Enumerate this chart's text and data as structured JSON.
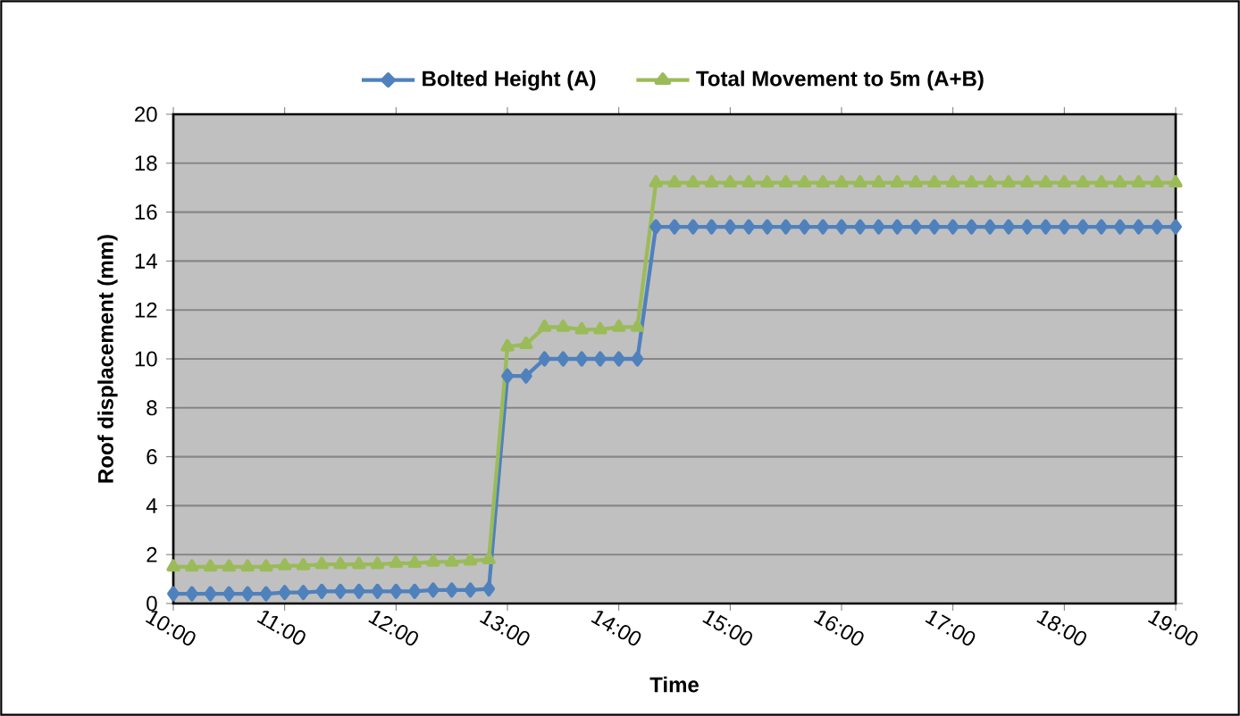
{
  "chart_data": {
    "type": "line",
    "xlabel": "Time",
    "ylabel": "Roof displacement (mm)",
    "x": [
      10,
      10.167,
      10.333,
      10.5,
      10.667,
      10.833,
      11,
      11.167,
      11.333,
      11.5,
      11.667,
      11.833,
      12,
      12.167,
      12.333,
      12.5,
      12.667,
      12.833,
      13,
      13.167,
      13.333,
      13.5,
      13.667,
      13.833,
      14,
      14.167,
      14.333,
      14.5,
      14.667,
      14.833,
      15,
      15.167,
      15.333,
      15.5,
      15.667,
      15.833,
      16,
      16.167,
      16.333,
      16.5,
      16.667,
      16.833,
      17,
      17.167,
      17.333,
      17.5,
      17.667,
      17.833,
      18,
      18.167,
      18.333,
      18.5,
      18.667,
      18.833,
      19
    ],
    "series": [
      {
        "name": "Bolted Height (A)",
        "color": "#4f81bd",
        "marker": "diamond",
        "values": [
          0.4,
          0.4,
          0.4,
          0.4,
          0.4,
          0.4,
          0.45,
          0.45,
          0.5,
          0.5,
          0.5,
          0.5,
          0.5,
          0.5,
          0.55,
          0.55,
          0.55,
          0.6,
          9.3,
          9.3,
          10.0,
          10.0,
          10.0,
          10.0,
          10.0,
          10.0,
          15.4,
          15.4,
          15.4,
          15.4,
          15.4,
          15.4,
          15.4,
          15.4,
          15.4,
          15.4,
          15.4,
          15.4,
          15.4,
          15.4,
          15.4,
          15.4,
          15.4,
          15.4,
          15.4,
          15.4,
          15.4,
          15.4,
          15.4,
          15.4,
          15.4,
          15.4,
          15.4,
          15.4,
          15.4
        ]
      },
      {
        "name": "Total Movement to 5m (A+B)",
        "color": "#9bbb59",
        "marker": "triangle",
        "values": [
          1.5,
          1.5,
          1.5,
          1.5,
          1.5,
          1.5,
          1.55,
          1.55,
          1.6,
          1.6,
          1.6,
          1.6,
          1.65,
          1.65,
          1.7,
          1.7,
          1.75,
          1.8,
          10.5,
          10.6,
          11.3,
          11.3,
          11.2,
          11.2,
          11.3,
          11.3,
          17.2,
          17.2,
          17.2,
          17.2,
          17.2,
          17.2,
          17.2,
          17.2,
          17.2,
          17.2,
          17.2,
          17.2,
          17.2,
          17.2,
          17.2,
          17.2,
          17.2,
          17.2,
          17.2,
          17.2,
          17.2,
          17.2,
          17.2,
          17.2,
          17.2,
          17.2,
          17.2,
          17.2,
          17.2
        ]
      }
    ],
    "xlim": [
      10,
      19
    ],
    "xticks": [
      {
        "value": 10,
        "label": "10:00"
      },
      {
        "value": 11,
        "label": "11:00"
      },
      {
        "value": 12,
        "label": "12:00"
      },
      {
        "value": 13,
        "label": "13:00"
      },
      {
        "value": 14,
        "label": "14:00"
      },
      {
        "value": 15,
        "label": "15:00"
      },
      {
        "value": 16,
        "label": "16:00"
      },
      {
        "value": 17,
        "label": "17:00"
      },
      {
        "value": 18,
        "label": "18:00"
      },
      {
        "value": 19,
        "label": "19:00"
      }
    ],
    "ylim": [
      0,
      20
    ],
    "yticks": [
      0,
      2,
      4,
      6,
      8,
      10,
      12,
      14,
      16,
      18,
      20
    ],
    "grid": "y",
    "legend": "top",
    "line_style": "solid"
  }
}
